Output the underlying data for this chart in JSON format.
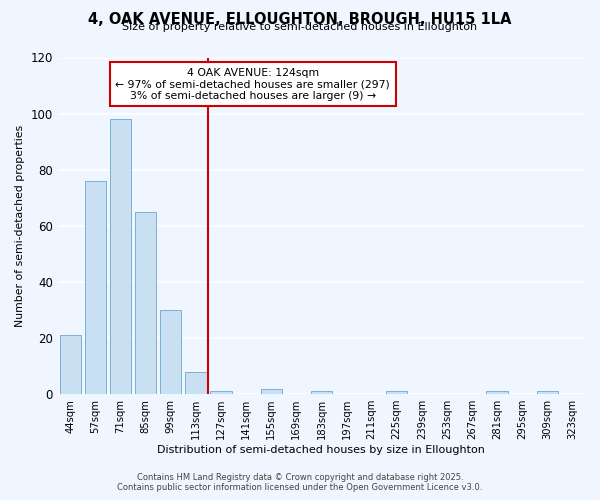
{
  "title": "4, OAK AVENUE, ELLOUGHTON, BROUGH, HU15 1LA",
  "subtitle": "Size of property relative to semi-detached houses in Elloughton",
  "xlabel": "Distribution of semi-detached houses by size in Elloughton",
  "ylabel": "Number of semi-detached properties",
  "bin_labels": [
    "44sqm",
    "57sqm",
    "71sqm",
    "85sqm",
    "99sqm",
    "113sqm",
    "127sqm",
    "141sqm",
    "155sqm",
    "169sqm",
    "183sqm",
    "197sqm",
    "211sqm",
    "225sqm",
    "239sqm",
    "253sqm",
    "267sqm",
    "281sqm",
    "295sqm",
    "309sqm",
    "323sqm"
  ],
  "bar_values": [
    21,
    76,
    98,
    65,
    30,
    8,
    1,
    0,
    2,
    0,
    1,
    0,
    0,
    1,
    0,
    0,
    0,
    1,
    0,
    1,
    0
  ],
  "bar_color": "#c9dff2",
  "bar_edge_color": "#7ab0d4",
  "vline_bin_index": 6,
  "annotation_line1": "4 OAK AVENUE: 124sqm",
  "annotation_line2": "← 97% of semi-detached houses are smaller (297)",
  "annotation_line3": "3% of semi-detached houses are larger (9) →",
  "vline_color": "#cc0000",
  "annotation_box_edge": "#cc0000",
  "ylim": [
    0,
    120
  ],
  "yticks": [
    0,
    20,
    40,
    60,
    80,
    100,
    120
  ],
  "footer_line1": "Contains HM Land Registry data © Crown copyright and database right 2025.",
  "footer_line2": "Contains public sector information licensed under the Open Government Licence v3.0.",
  "background_color": "#f0f6ff",
  "grid_color": "#ffffff"
}
